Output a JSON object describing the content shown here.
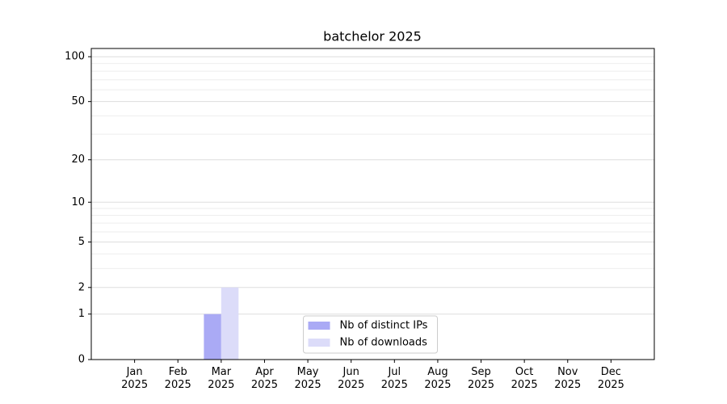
{
  "chart_data": {
    "type": "bar",
    "title": "batchelor 2025",
    "categories": [
      "Jan\n2025",
      "Feb\n2025",
      "Mar\n2025",
      "Apr\n2025",
      "May\n2025",
      "Jun\n2025",
      "Jul\n2025",
      "Aug\n2025",
      "Sep\n2025",
      "Oct\n2025",
      "Nov\n2025",
      "Dec\n2025"
    ],
    "series": [
      {
        "name": "Nb of distinct IPs",
        "color": "#aaaaf5",
        "values": [
          0,
          0,
          1,
          0,
          0,
          0,
          0,
          0,
          0,
          0,
          0,
          0
        ]
      },
      {
        "name": "Nb of downloads",
        "color": "#dcdcf9",
        "values": [
          0,
          0,
          2,
          0,
          0,
          0,
          0,
          0,
          0,
          0,
          0,
          0
        ]
      }
    ],
    "yscale": "log1p",
    "ylim": [
      0,
      113.5
    ],
    "yticks": [
      0,
      1,
      2,
      5,
      10,
      20,
      50,
      100
    ],
    "minor_yticks": [
      3,
      4,
      6,
      7,
      8,
      9,
      30,
      40,
      60,
      70,
      80,
      90
    ],
    "grid": true,
    "legend": "lower center"
  }
}
